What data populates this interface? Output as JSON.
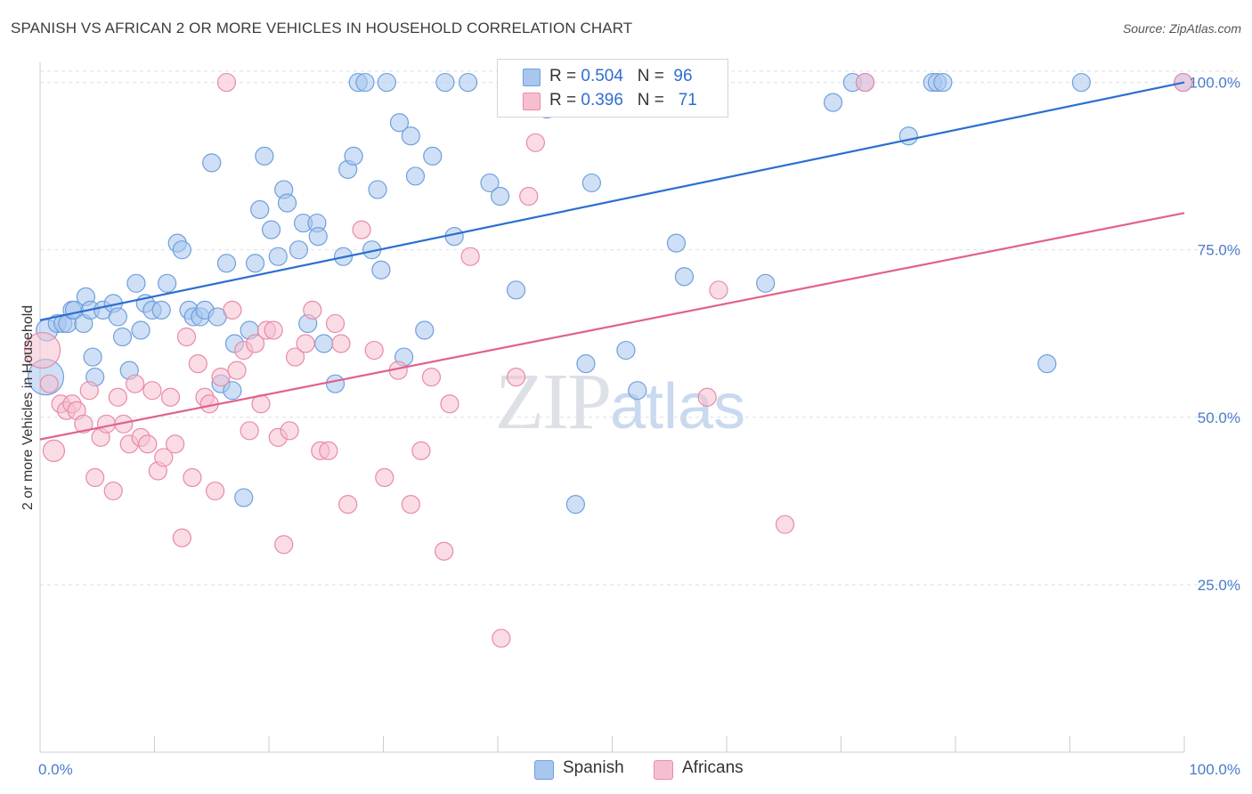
{
  "title": "SPANISH VS AFRICAN 2 OR MORE VEHICLES IN HOUSEHOLD CORRELATION CHART",
  "source": "Source: ZipAtlas.com",
  "watermark": {
    "zip": "ZIP",
    "atlas": "atlas"
  },
  "legend": {
    "spanish": {
      "r_label": "R = ",
      "r_value": "0.504",
      "n_label": "N = ",
      "n_value": "96"
    },
    "africans": {
      "r_label": "R = ",
      "r_value": "0.396",
      "n_label": "N = ",
      "n_value": "71"
    }
  },
  "colors": {
    "spanish_fill": "#a8c6ee",
    "spanish_stroke": "#6e9fdc",
    "spanish_line": "#2b6fcf",
    "africans_fill": "#f6bfd0",
    "africans_stroke": "#e98aa8",
    "africans_line": "#e0628c",
    "tick": "#4a7cc9",
    "grid": "#dcdfe5"
  },
  "chart_data": {
    "type": "scatter",
    "title": "SPANISH VS AFRICAN 2 OR MORE VEHICLES IN HOUSEHOLD CORRELATION CHART",
    "xlabel": "",
    "ylabel": "2 or more Vehicles in Household",
    "xlim": [
      0,
      100
    ],
    "ylim": [
      0,
      103
    ],
    "x_tick_labels": [
      "0.0%",
      "100.0%"
    ],
    "y_ticks": [
      25,
      50,
      75,
      100
    ],
    "y_tick_labels": [
      "25.0%",
      "50.0%",
      "75.0%",
      "100.0%"
    ],
    "grid": true,
    "legend_position": "top-center",
    "series": [
      {
        "name": "Spanish",
        "color": "#a8c6ee",
        "trend": {
          "x": [
            0,
            100
          ],
          "y": [
            64.5,
            100
          ]
        },
        "points": [
          [
            0.5,
            56,
            20
          ],
          [
            0.6,
            63,
            12
          ],
          [
            1.5,
            64,
            10
          ],
          [
            2,
            64,
            10
          ],
          [
            2.4,
            64,
            10
          ],
          [
            2.8,
            66,
            10
          ],
          [
            3,
            66,
            10
          ],
          [
            3.8,
            64,
            10
          ],
          [
            4,
            68,
            10
          ],
          [
            4.4,
            66,
            10
          ],
          [
            4.6,
            59,
            10
          ],
          [
            4.8,
            56,
            10
          ],
          [
            5.5,
            66,
            10
          ],
          [
            6.4,
            67,
            10
          ],
          [
            6.8,
            65,
            10
          ],
          [
            7.2,
            62,
            10
          ],
          [
            7.8,
            57,
            10
          ],
          [
            8.4,
            70,
            10
          ],
          [
            8.8,
            63,
            10
          ],
          [
            9.2,
            67,
            10
          ],
          [
            9.8,
            66,
            10
          ],
          [
            10.6,
            66,
            10
          ],
          [
            11.1,
            70,
            10
          ],
          [
            12,
            76,
            10
          ],
          [
            12.4,
            75,
            10
          ],
          [
            13,
            66,
            10
          ],
          [
            13.4,
            65,
            10
          ],
          [
            14,
            65,
            10
          ],
          [
            14.4,
            66,
            10
          ],
          [
            15,
            88,
            10
          ],
          [
            15.5,
            65,
            10
          ],
          [
            15.8,
            55,
            10
          ],
          [
            16.3,
            73,
            10
          ],
          [
            16.8,
            54,
            10
          ],
          [
            17,
            61,
            10
          ],
          [
            17.8,
            38,
            10
          ],
          [
            18.3,
            63,
            10
          ],
          [
            18.8,
            73,
            10
          ],
          [
            19.2,
            81,
            10
          ],
          [
            19.6,
            89,
            10
          ],
          [
            20.2,
            78,
            10
          ],
          [
            20.8,
            74,
            10
          ],
          [
            21.3,
            84,
            10
          ],
          [
            21.6,
            82,
            10
          ],
          [
            22.6,
            75,
            10
          ],
          [
            23,
            79,
            10
          ],
          [
            23.4,
            64,
            10
          ],
          [
            24.2,
            79,
            10
          ],
          [
            24.3,
            77,
            10
          ],
          [
            24.8,
            61,
            10
          ],
          [
            25.8,
            55,
            10
          ],
          [
            26.5,
            74,
            10
          ],
          [
            26.9,
            87,
            10
          ],
          [
            27.4,
            89,
            10
          ],
          [
            27.8,
            100,
            10
          ],
          [
            28.4,
            100,
            10
          ],
          [
            29,
            75,
            10
          ],
          [
            29.5,
            84,
            10
          ],
          [
            29.8,
            72,
            10
          ],
          [
            30.3,
            100,
            10
          ],
          [
            31.4,
            94,
            10
          ],
          [
            31.8,
            59,
            10
          ],
          [
            32.4,
            92,
            10
          ],
          [
            32.8,
            86,
            10
          ],
          [
            33.6,
            63,
            10
          ],
          [
            34.3,
            89,
            10
          ],
          [
            35.4,
            100,
            10
          ],
          [
            36.2,
            77,
            10
          ],
          [
            37.4,
            100,
            10
          ],
          [
            39.3,
            85,
            10
          ],
          [
            40.2,
            83,
            10
          ],
          [
            41.6,
            69,
            10
          ],
          [
            44.3,
            96,
            10
          ],
          [
            45.1,
            100,
            10
          ],
          [
            46.8,
            37,
            10
          ],
          [
            47.7,
            58,
            10
          ],
          [
            48.2,
            85,
            10
          ],
          [
            50.2,
            100,
            10
          ],
          [
            51.2,
            60,
            10
          ],
          [
            52.2,
            54,
            10
          ],
          [
            54.7,
            100,
            10
          ],
          [
            55.6,
            76,
            10
          ],
          [
            56.3,
            71,
            10
          ],
          [
            56.9,
            100,
            10
          ],
          [
            58.4,
            100,
            10
          ],
          [
            63.4,
            70,
            10
          ],
          [
            69.3,
            97,
            10
          ],
          [
            71,
            100,
            10
          ],
          [
            72.1,
            100,
            10
          ],
          [
            75.9,
            92,
            10
          ],
          [
            78,
            100,
            10
          ],
          [
            78.4,
            100,
            10
          ],
          [
            78.9,
            100,
            10
          ],
          [
            88,
            58,
            10
          ],
          [
            91,
            100,
            10
          ],
          [
            99.9,
            100,
            10
          ]
        ]
      },
      {
        "name": "Africans",
        "color": "#f6bfd0",
        "trend": {
          "x": [
            0,
            100
          ],
          "y": [
            46.7,
            80.5
          ]
        },
        "points": [
          [
            0.2,
            60,
            20
          ],
          [
            0.8,
            55,
            10
          ],
          [
            1.2,
            45,
            12
          ],
          [
            1.8,
            52,
            10
          ],
          [
            2.3,
            51,
            10
          ],
          [
            2.8,
            52,
            10
          ],
          [
            3.2,
            51,
            10
          ],
          [
            3.8,
            49,
            10
          ],
          [
            4.3,
            54,
            10
          ],
          [
            4.8,
            41,
            10
          ],
          [
            5.3,
            47,
            10
          ],
          [
            5.8,
            49,
            10
          ],
          [
            6.4,
            39,
            10
          ],
          [
            6.8,
            53,
            10
          ],
          [
            7.3,
            49,
            10
          ],
          [
            7.8,
            46,
            10
          ],
          [
            8.3,
            55,
            10
          ],
          [
            8.8,
            47,
            10
          ],
          [
            9.4,
            46,
            10
          ],
          [
            9.8,
            54,
            10
          ],
          [
            10.3,
            42,
            10
          ],
          [
            10.8,
            44,
            10
          ],
          [
            11.4,
            53,
            10
          ],
          [
            11.8,
            46,
            10
          ],
          [
            12.4,
            32,
            10
          ],
          [
            12.8,
            62,
            10
          ],
          [
            13.3,
            41,
            10
          ],
          [
            13.8,
            58,
            10
          ],
          [
            14.4,
            53,
            10
          ],
          [
            14.8,
            52,
            10
          ],
          [
            15.3,
            39,
            10
          ],
          [
            15.8,
            56,
            10
          ],
          [
            16.3,
            100,
            10
          ],
          [
            16.8,
            66,
            10
          ],
          [
            17.2,
            57,
            10
          ],
          [
            17.8,
            60,
            10
          ],
          [
            18.3,
            48,
            10
          ],
          [
            18.8,
            61,
            10
          ],
          [
            19.3,
            52,
            10
          ],
          [
            19.8,
            63,
            10
          ],
          [
            20.4,
            63,
            10
          ],
          [
            20.8,
            47,
            10
          ],
          [
            21.3,
            31,
            10
          ],
          [
            21.8,
            48,
            10
          ],
          [
            22.3,
            59,
            10
          ],
          [
            23.2,
            61,
            10
          ],
          [
            23.8,
            66,
            10
          ],
          [
            24.5,
            45,
            10
          ],
          [
            25.2,
            45,
            10
          ],
          [
            25.8,
            64,
            10
          ],
          [
            26.3,
            61,
            10
          ],
          [
            26.9,
            37,
            10
          ],
          [
            28.1,
            78,
            10
          ],
          [
            29.2,
            60,
            10
          ],
          [
            30.1,
            41,
            10
          ],
          [
            31.3,
            57,
            10
          ],
          [
            32.4,
            37,
            10
          ],
          [
            33.3,
            45,
            10
          ],
          [
            34.2,
            56,
            10
          ],
          [
            35.3,
            30,
            10
          ],
          [
            35.8,
            52,
            10
          ],
          [
            37.6,
            74,
            10
          ],
          [
            40.3,
            17,
            10
          ],
          [
            41.6,
            56,
            10
          ],
          [
            42.7,
            83,
            10
          ],
          [
            43.3,
            91,
            10
          ],
          [
            58.3,
            53,
            10
          ],
          [
            59.3,
            69,
            10
          ],
          [
            65.1,
            34,
            10
          ],
          [
            72.1,
            100,
            10
          ],
          [
            99.9,
            100,
            10
          ]
        ]
      }
    ]
  }
}
